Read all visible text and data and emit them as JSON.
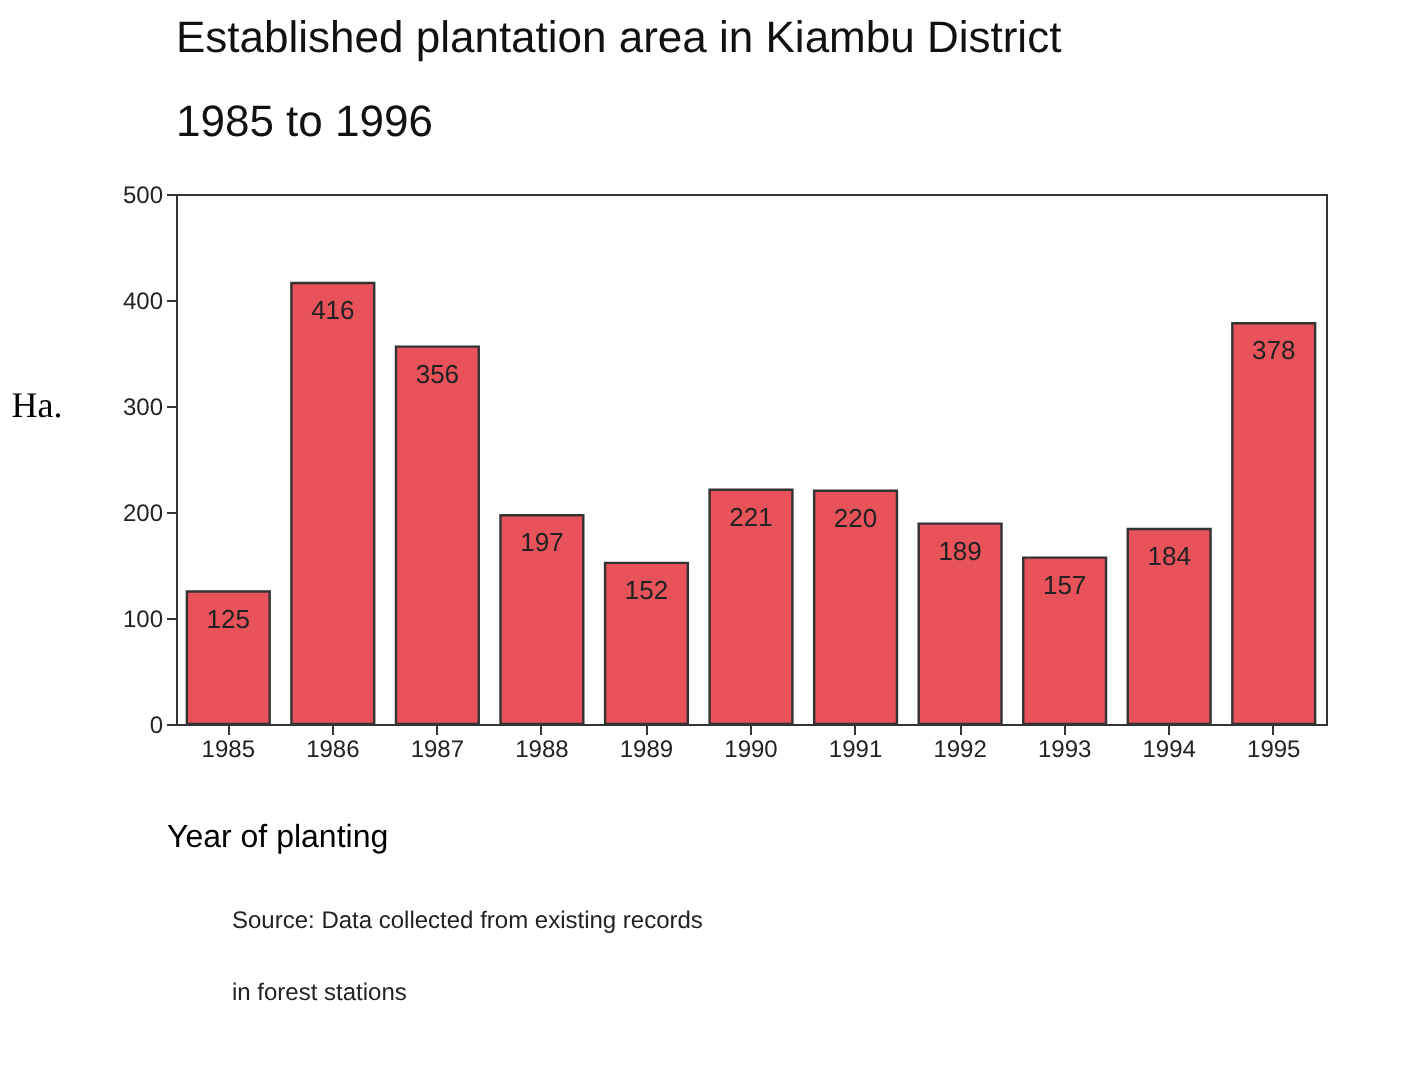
{
  "chart_data": {
    "type": "bar",
    "title": "Established plantation area in Kiambu District",
    "subtitle": "1985 to 1996",
    "xlabel": "Year of planting",
    "ylabel": "Ha.",
    "categories": [
      "1985",
      "1986",
      "1987",
      "1988",
      "1989",
      "1990",
      "1991",
      "1992",
      "1993",
      "1994",
      "1995"
    ],
    "values": [
      125,
      416,
      356,
      197,
      152,
      221,
      220,
      189,
      157,
      184,
      378
    ],
    "color": "#e8525a",
    "ylim": [
      0,
      500
    ],
    "yticks": [
      0,
      100,
      200,
      300,
      400,
      500
    ],
    "grid": false,
    "data_labels": true,
    "annotations": [
      "Source: Data collected from existing records",
      "in forest stations"
    ]
  }
}
